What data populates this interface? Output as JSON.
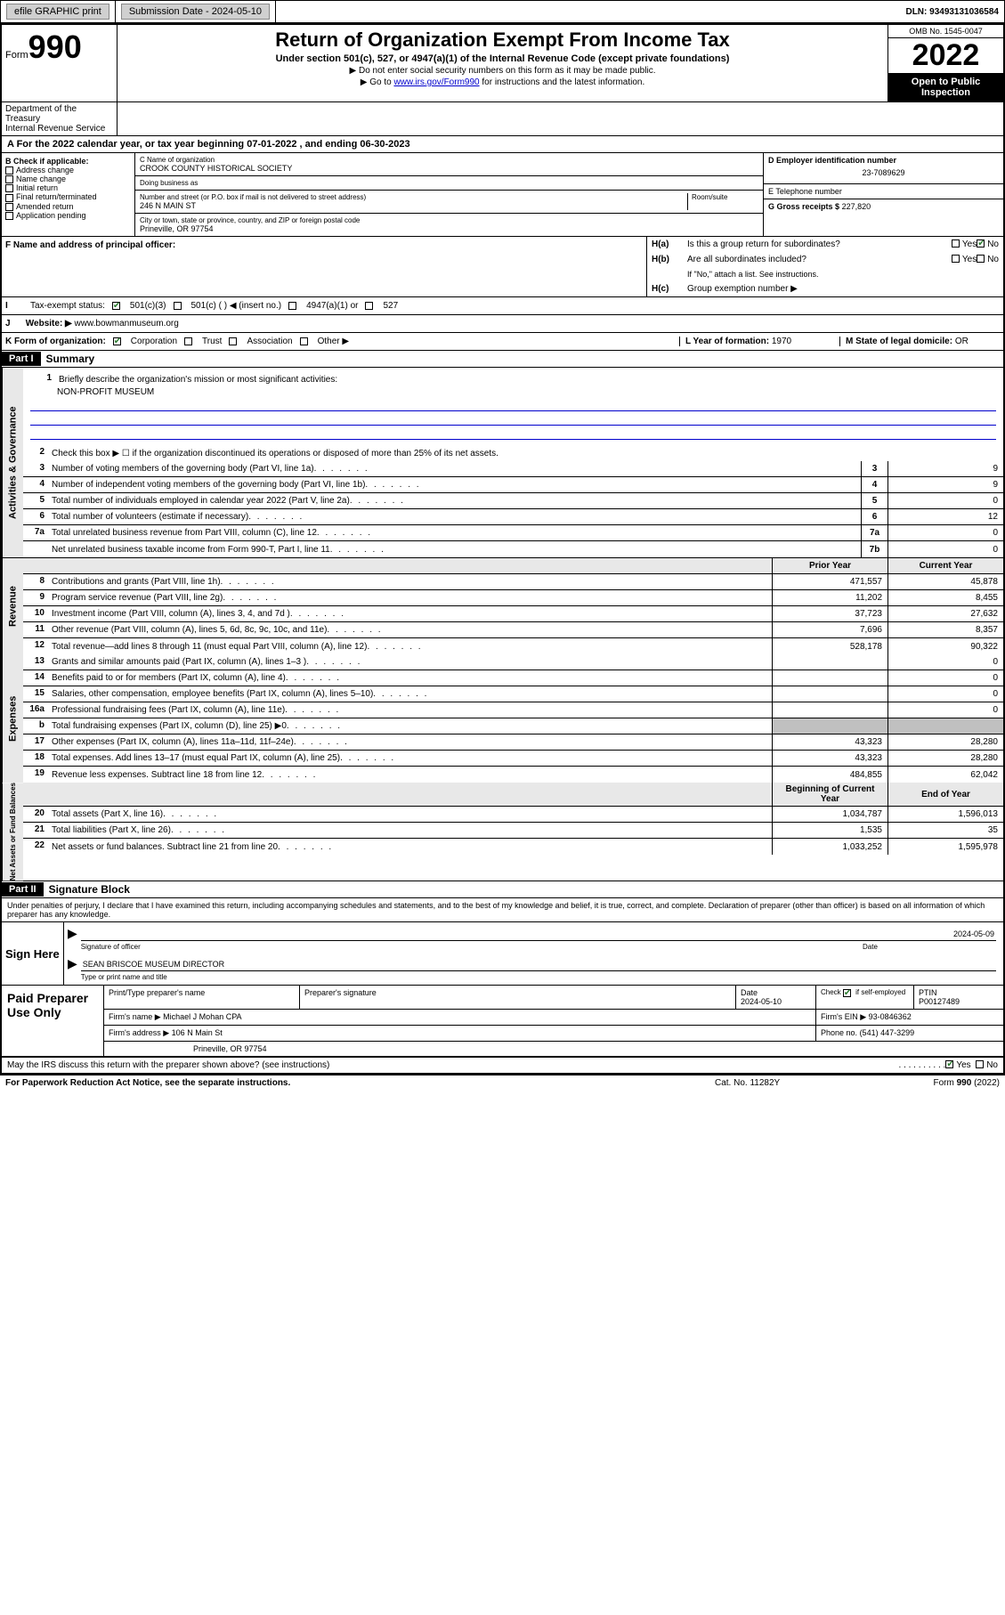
{
  "topbar": {
    "efile": "efile GRAPHIC print",
    "sub_label": "Submission Date - 2024-05-10",
    "dln": "DLN: 93493131036584"
  },
  "header": {
    "form_label": "Form",
    "form_num": "990",
    "title": "Return of Organization Exempt From Income Tax",
    "subtitle": "Under section 501(c), 527, or 4947(a)(1) of the Internal Revenue Code (except private foundations)",
    "note1": "▶ Do not enter social security numbers on this form as it may be made public.",
    "note2_pre": "▶ Go to ",
    "note2_link": "www.irs.gov/Form990",
    "note2_post": " for instructions and the latest information.",
    "omb": "OMB No. 1545-0047",
    "year": "2022",
    "open": "Open to Public Inspection",
    "dept": "Department of the Treasury",
    "irs": "Internal Revenue Service"
  },
  "period": {
    "a_label": "A For the 2022 calendar year, or tax year beginning ",
    "begin": "07-01-2022",
    "mid": " , and ending ",
    "end": "06-30-2023"
  },
  "box_b": {
    "label": "B Check if applicable:",
    "items": [
      "Address change",
      "Name change",
      "Initial return",
      "Final return/terminated",
      "Amended return",
      "Application pending"
    ]
  },
  "box_c": {
    "name_label": "C Name of organization",
    "name": "CROOK COUNTY HISTORICAL SOCIETY",
    "dba_label": "Doing business as",
    "dba": "",
    "addr_label": "Number and street (or P.O. box if mail is not delivered to street address)",
    "room_label": "Room/suite",
    "addr": "246 N MAIN ST",
    "city_label": "City or town, state or province, country, and ZIP or foreign postal code",
    "city": "Prineville, OR  97754"
  },
  "box_d": {
    "ein_label": "D Employer identification number",
    "ein": "23-7089629",
    "phone_label": "E Telephone number",
    "phone": "",
    "gross_label": "G Gross receipts $",
    "gross": "227,820"
  },
  "box_f": {
    "label": "F Name and address of principal officer:",
    "value": ""
  },
  "box_h": {
    "a": "Is this a group return for subordinates?",
    "b": "Are all subordinates included?",
    "b_note": "If \"No,\" attach a list. See instructions.",
    "c": "Group exemption number ▶",
    "yes": "Yes",
    "no": "No"
  },
  "row_i": {
    "label": "Tax-exempt status:",
    "opt1": "501(c)(3)",
    "opt2": "501(c) (   ) ◀ (insert no.)",
    "opt3": "4947(a)(1) or",
    "opt4": "527"
  },
  "row_j": {
    "label": "Website: ▶",
    "value": "www.bowmanmuseum.org"
  },
  "row_k": {
    "label": "K Form of organization:",
    "corp": "Corporation",
    "trust": "Trust",
    "assoc": "Association",
    "other": "Other ▶",
    "l_label": "L Year of formation:",
    "l_val": "1970",
    "m_label": "M State of legal domicile:",
    "m_val": "OR"
  },
  "part1": {
    "header": "Part I",
    "title": "Summary",
    "l1": "Briefly describe the organization's mission or most significant activities:",
    "mission": "NON-PROFIT MUSEUM",
    "l2": "Check this box ▶ ☐  if the organization discontinued its operations or disposed of more than 25% of its net assets.",
    "lines": [
      {
        "n": "3",
        "d": "Number of voting members of the governing body (Part VI, line 1a)",
        "b": "3",
        "v": "9"
      },
      {
        "n": "4",
        "d": "Number of independent voting members of the governing body (Part VI, line 1b)",
        "b": "4",
        "v": "9"
      },
      {
        "n": "5",
        "d": "Total number of individuals employed in calendar year 2022 (Part V, line 2a)",
        "b": "5",
        "v": "0"
      },
      {
        "n": "6",
        "d": "Total number of volunteers (estimate if necessary)",
        "b": "6",
        "v": "12"
      },
      {
        "n": "7a",
        "d": "Total unrelated business revenue from Part VIII, column (C), line 12",
        "b": "7a",
        "v": "0"
      },
      {
        "n": "",
        "d": "Net unrelated business taxable income from Form 990-T, Part I, line 11",
        "b": "7b",
        "v": "0"
      }
    ],
    "col_prior": "Prior Year",
    "col_current": "Current Year",
    "revenue": [
      {
        "n": "8",
        "d": "Contributions and grants (Part VIII, line 1h)",
        "p": "471,557",
        "c": "45,878"
      },
      {
        "n": "9",
        "d": "Program service revenue (Part VIII, line 2g)",
        "p": "11,202",
        "c": "8,455"
      },
      {
        "n": "10",
        "d": "Investment income (Part VIII, column (A), lines 3, 4, and 7d )",
        "p": "37,723",
        "c": "27,632"
      },
      {
        "n": "11",
        "d": "Other revenue (Part VIII, column (A), lines 5, 6d, 8c, 9c, 10c, and 11e)",
        "p": "7,696",
        "c": "8,357"
      },
      {
        "n": "12",
        "d": "Total revenue—add lines 8 through 11 (must equal Part VIII, column (A), line 12)",
        "p": "528,178",
        "c": "90,322"
      }
    ],
    "expenses": [
      {
        "n": "13",
        "d": "Grants and similar amounts paid (Part IX, column (A), lines 1–3 )",
        "p": "",
        "c": "0"
      },
      {
        "n": "14",
        "d": "Benefits paid to or for members (Part IX, column (A), line 4)",
        "p": "",
        "c": "0"
      },
      {
        "n": "15",
        "d": "Salaries, other compensation, employee benefits (Part IX, column (A), lines 5–10)",
        "p": "",
        "c": "0"
      },
      {
        "n": "16a",
        "d": "Professional fundraising fees (Part IX, column (A), line 11e)",
        "p": "",
        "c": "0"
      },
      {
        "n": "b",
        "d": "Total fundraising expenses (Part IX, column (D), line 25) ▶0",
        "p": "shaded",
        "c": "shaded"
      },
      {
        "n": "17",
        "d": "Other expenses (Part IX, column (A), lines 11a–11d, 11f–24e)",
        "p": "43,323",
        "c": "28,280"
      },
      {
        "n": "18",
        "d": "Total expenses. Add lines 13–17 (must equal Part IX, column (A), line 25)",
        "p": "43,323",
        "c": "28,280"
      },
      {
        "n": "19",
        "d": "Revenue less expenses. Subtract line 18 from line 12",
        "p": "484,855",
        "c": "62,042"
      }
    ],
    "col_begin": "Beginning of Current Year",
    "col_end": "End of Year",
    "netassets": [
      {
        "n": "20",
        "d": "Total assets (Part X, line 16)",
        "p": "1,034,787",
        "c": "1,596,013"
      },
      {
        "n": "21",
        "d": "Total liabilities (Part X, line 26)",
        "p": "1,535",
        "c": "35"
      },
      {
        "n": "22",
        "d": "Net assets or fund balances. Subtract line 21 from line 20",
        "p": "1,033,252",
        "c": "1,595,978"
      }
    ],
    "side_gov": "Activities & Governance",
    "side_rev": "Revenue",
    "side_exp": "Expenses",
    "side_net": "Net Assets or Fund Balances"
  },
  "part2": {
    "header": "Part II",
    "title": "Signature Block",
    "penalty": "Under penalties of perjury, I declare that I have examined this return, including accompanying schedules and statements, and to the best of my knowledge and belief, it is true, correct, and complete. Declaration of preparer (other than officer) is based on all information of which preparer has any knowledge.",
    "sign_here": "Sign Here",
    "sig_officer": "Signature of officer",
    "sig_date": "2024-05-09",
    "date_label": "Date",
    "officer_name": "SEAN BRISCOE MUSEUM DIRECTOR",
    "name_label": "Type or print name and title",
    "paid": "Paid Preparer Use Only",
    "prep_name_label": "Print/Type preparer's name",
    "prep_sig_label": "Preparer's signature",
    "prep_date_label": "Date",
    "prep_date": "2024-05-10",
    "check_self": "Check ☑ if self-employed",
    "ptin_label": "PTIN",
    "ptin": "P00127489",
    "firm_name_label": "Firm's name    ▶",
    "firm_name": "Michael J Mohan CPA",
    "firm_ein_label": "Firm's EIN ▶",
    "firm_ein": "93-0846362",
    "firm_addr_label": "Firm's address ▶",
    "firm_addr1": "106 N Main St",
    "firm_addr2": "Prineville, OR  97754",
    "phone_label": "Phone no.",
    "phone": "(541) 447-3299",
    "may_irs": "May the IRS discuss this return with the preparer shown above? (see instructions)",
    "yes": "Yes",
    "no": "No"
  },
  "footer": {
    "paperwork": "For Paperwork Reduction Act Notice, see the separate instructions.",
    "cat": "Cat. No. 11282Y",
    "form": "Form 990 (2022)"
  }
}
